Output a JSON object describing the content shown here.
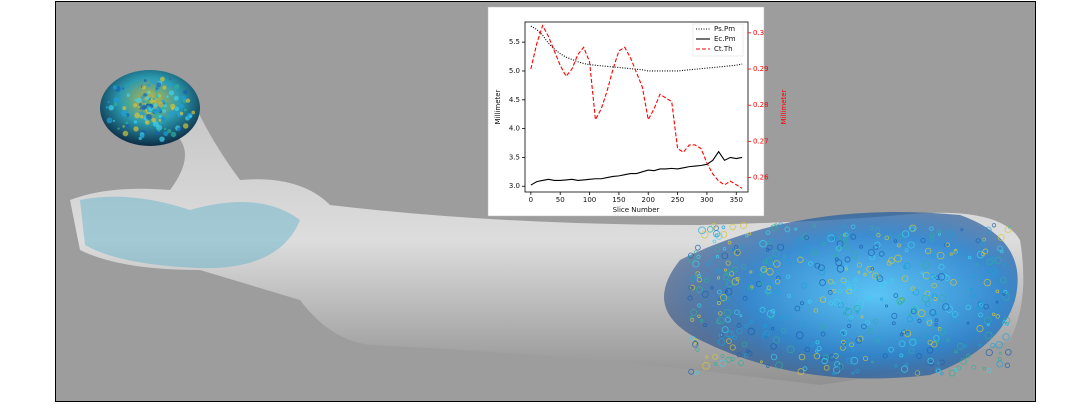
{
  "chart_data": {
    "type": "line",
    "xlabel": "Slice Number",
    "ylabel": "Millimeter",
    "y2label": "Millimeter",
    "x": [
      0,
      10,
      20,
      30,
      40,
      50,
      60,
      70,
      80,
      90,
      100,
      110,
      120,
      130,
      140,
      150,
      160,
      170,
      180,
      190,
      200,
      210,
      220,
      230,
      240,
      250,
      260,
      270,
      280,
      290,
      300,
      310,
      320,
      330,
      340,
      350,
      360
    ],
    "series": [
      {
        "name": "Ps.Pm",
        "color": "#000000",
        "linestyle": "dotted",
        "values": [
          5.78,
          5.72,
          5.62,
          5.48,
          5.38,
          5.3,
          5.24,
          5.2,
          5.16,
          5.13,
          5.11,
          5.1,
          5.09,
          5.08,
          5.07,
          5.06,
          5.05,
          5.04,
          5.03,
          5.02,
          5.0,
          5.0,
          5.0,
          5.0,
          5.0,
          5.0,
          5.01,
          5.02,
          5.03,
          5.04,
          5.05,
          5.06,
          5.07,
          5.08,
          5.09,
          5.1,
          5.12
        ]
      },
      {
        "name": "Ec.Pm",
        "color": "#000000",
        "linestyle": "solid",
        "values": [
          3.02,
          3.08,
          3.1,
          3.12,
          3.1,
          3.1,
          3.11,
          3.12,
          3.1,
          3.11,
          3.12,
          3.13,
          3.13,
          3.15,
          3.17,
          3.18,
          3.2,
          3.22,
          3.22,
          3.25,
          3.28,
          3.27,
          3.3,
          3.3,
          3.31,
          3.3,
          3.32,
          3.34,
          3.35,
          3.36,
          3.38,
          3.45,
          3.6,
          3.45,
          3.5,
          3.48,
          3.5
        ]
      },
      {
        "name": "Ct.Th",
        "color": "#ff0000",
        "linestyle": "dashed",
        "axis": "y2",
        "values": [
          0.29,
          0.297,
          0.302,
          0.299,
          0.295,
          0.291,
          0.288,
          0.29,
          0.294,
          0.296,
          0.292,
          0.276,
          0.279,
          0.284,
          0.29,
          0.295,
          0.296,
          0.293,
          0.289,
          0.285,
          0.276,
          0.279,
          0.283,
          0.282,
          0.281,
          0.268,
          0.267,
          0.269,
          0.269,
          0.268,
          0.264,
          0.261,
          0.259,
          0.258,
          0.259,
          0.258,
          0.257
        ]
      }
    ],
    "xlim": [
      -10,
      370
    ],
    "xticks": [
      0,
      50,
      100,
      150,
      200,
      250,
      300,
      350
    ],
    "ylim": [
      2.9,
      5.85
    ],
    "yticks": [
      {
        "value": 3,
        "label": "3.0"
      },
      3.5,
      {
        "value": 4,
        "label": "4.0"
      },
      4.5,
      {
        "value": 5,
        "label": "5.0"
      },
      5.5
    ],
    "y2lim": [
      0.256,
      0.303
    ],
    "y2ticks": [
      0.26,
      0.27,
      0.28,
      0.29,
      0.3
    ],
    "y2color": "#ff0000",
    "legend": "upper right"
  }
}
